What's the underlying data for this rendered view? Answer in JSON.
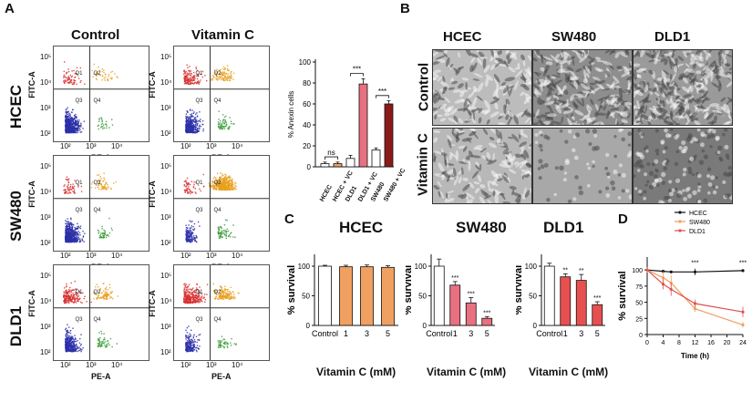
{
  "panel_a": {
    "label": "A",
    "columns": [
      "Control",
      "Vitamin C"
    ],
    "rows": [
      "HCEC",
      "SW480",
      "DLD1"
    ],
    "x_axis": "PE-A",
    "y_axis": "FITC-A",
    "tick_labels": [
      "10²",
      "10³",
      "10⁴",
      "10⁵"
    ],
    "quadrants": [
      "Q1",
      "Q2",
      "Q3",
      "Q4"
    ],
    "colors": {
      "live": "#2b2fa8",
      "early": "#3a9a3a",
      "late": "#e9a020",
      "necrotic": "#d83030"
    }
  },
  "panel_b": {
    "label": "B",
    "columns": [
      "HCEC",
      "SW480",
      "DLD1"
    ],
    "rows": [
      "Control",
      "Vitamin C"
    ]
  },
  "panel_c": {
    "label": "C"
  },
  "panel_d": {
    "label": "D"
  },
  "chart_data": [
    {
      "type": "bar",
      "title": "",
      "ylabel": "% Anexin cells",
      "ylim": [
        0,
        100
      ],
      "yticks": [
        0,
        20,
        40,
        60,
        80,
        100
      ],
      "categories": [
        "HCEC",
        "HCEC + VC",
        "DLD1",
        "DLD1 + VC",
        "SW480",
        "SW480 + VC"
      ],
      "values": [
        3,
        3,
        8,
        79,
        16,
        60
      ],
      "errors": [
        1.5,
        1.5,
        3,
        5,
        2,
        3
      ],
      "colors": [
        "#ffffff",
        "#f0a060",
        "#ffffff",
        "#e87080",
        "#ffffff",
        "#8b1a1a"
      ],
      "annotations": [
        {
          "text": "ns",
          "from": 0,
          "to": 1
        },
        {
          "text": "***",
          "from": 2,
          "to": 3
        },
        {
          "text": "***",
          "from": 4,
          "to": 5
        }
      ]
    },
    {
      "type": "bar",
      "title": "HCEC",
      "xlabel": "Vitamin C (mM)",
      "ylabel": "% survival",
      "ylim": [
        0,
        120
      ],
      "yticks": [
        0,
        50,
        100
      ],
      "categories": [
        "Control",
        "1",
        "3",
        "5"
      ],
      "values": [
        100,
        99,
        99,
        98
      ],
      "errors": [
        1.5,
        2.5,
        3,
        3
      ],
      "colors": [
        "#ffffff",
        "#f0a060",
        "#f0a060",
        "#f0a060"
      ],
      "sig": [
        "",
        "",
        "",
        ""
      ]
    },
    {
      "type": "bar",
      "title": "SW480",
      "xlabel": "Vitamin C (mM)",
      "ylabel": "% survival",
      "ylim": [
        0,
        120
      ],
      "yticks": [
        0,
        50,
        100
      ],
      "categories": [
        "Control",
        "1",
        "3",
        "5"
      ],
      "values": [
        100,
        68,
        38,
        12
      ],
      "errors": [
        12,
        6,
        9,
        3
      ],
      "colors": [
        "#ffffff",
        "#e87080",
        "#e87080",
        "#e87080"
      ],
      "sig": [
        "",
        "***",
        "***",
        "***"
      ]
    },
    {
      "type": "bar",
      "title": "DLD1",
      "xlabel": "Vitamin C (mM)",
      "ylabel": "% survival",
      "ylim": [
        0,
        120
      ],
      "yticks": [
        0,
        50,
        100
      ],
      "categories": [
        "Control",
        "1",
        "3",
        "5"
      ],
      "values": [
        100,
        82,
        76,
        35
      ],
      "errors": [
        5,
        5,
        10,
        5
      ],
      "colors": [
        "#ffffff",
        "#e85050",
        "#e85050",
        "#e85050"
      ],
      "sig": [
        "",
        "**",
        "**",
        "***"
      ]
    },
    {
      "type": "line",
      "title": "",
      "xlabel": "Time (h)",
      "ylabel": "% survival",
      "xlim": [
        0,
        24
      ],
      "ylim": [
        0,
        120
      ],
      "xticks": [
        0,
        4,
        8,
        12,
        16,
        20,
        24
      ],
      "yticks": [
        0,
        25,
        50,
        75,
        100
      ],
      "legend_position": "top-right",
      "series": [
        {
          "name": "HCEC",
          "color": "#111111",
          "x": [
            0,
            4,
            6,
            12,
            24
          ],
          "y": [
            100,
            98,
            97,
            97,
            99
          ],
          "err": [
            2,
            2,
            2,
            5,
            2
          ]
        },
        {
          "name": "SW480",
          "color": "#f0a060",
          "x": [
            0,
            4,
            6,
            12,
            24
          ],
          "y": [
            100,
            88,
            80,
            40,
            15
          ],
          "err": [
            4,
            10,
            12,
            5,
            4
          ]
        },
        {
          "name": "DLD1",
          "color": "#e05050",
          "x": [
            0,
            4,
            6,
            12,
            24
          ],
          "y": [
            100,
            78,
            70,
            48,
            35
          ],
          "err": [
            4,
            8,
            10,
            6,
            8
          ]
        }
      ],
      "sig": [
        {
          "x": 12,
          "text": "***"
        },
        {
          "x": 24,
          "text": "***"
        }
      ]
    }
  ]
}
